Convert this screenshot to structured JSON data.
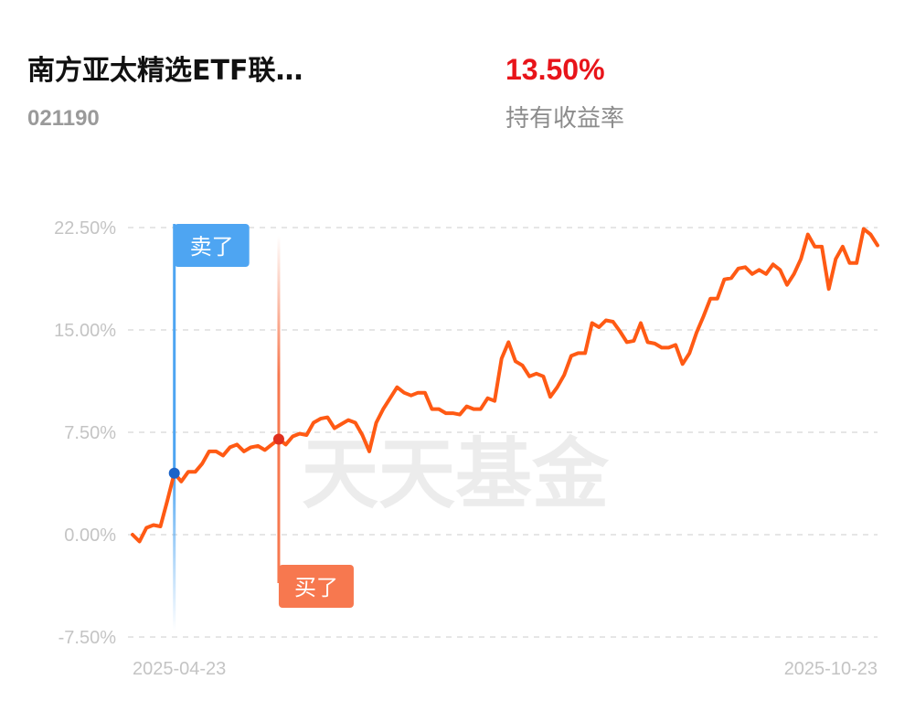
{
  "header": {
    "title": "南方亚太精选ETF联…",
    "code": "021190",
    "return": "13.50%",
    "return_label": "持有收益率"
  },
  "chart_data": {
    "type": "line",
    "watermark": "天天基金",
    "categories": [
      "2025-04-23",
      null,
      null,
      null,
      null,
      null,
      null,
      null,
      null,
      null,
      null,
      null,
      null,
      null,
      null,
      null,
      null,
      null,
      null,
      null,
      null,
      null,
      null,
      null,
      null,
      null,
      null,
      null,
      null,
      null,
      null,
      null,
      null,
      null,
      null,
      null,
      null,
      null,
      null,
      null,
      null,
      null,
      null,
      null,
      null,
      null,
      null,
      null,
      null,
      null,
      null,
      null,
      null,
      null,
      null,
      null,
      null,
      null,
      null,
      null,
      null,
      null,
      null,
      null,
      null,
      null,
      null,
      null,
      null,
      null,
      null,
      null,
      null,
      null,
      null,
      null,
      null,
      null,
      null,
      null,
      null,
      null,
      null,
      null,
      null,
      null,
      null,
      null,
      null,
      null,
      null,
      null,
      null,
      null,
      null,
      null,
      null,
      null,
      null,
      null,
      null,
      null,
      null,
      null,
      null,
      null,
      null,
      "2025-10-23"
    ],
    "series": [
      {
        "color": "#ff5a14",
        "values": [
          0,
          -0.5,
          0.5,
          0.7,
          0.6,
          2.5,
          4.5,
          3.9,
          4.6,
          4.6,
          5.2,
          6.1,
          6.1,
          5.8,
          6.4,
          6.6,
          6.1,
          6.4,
          6.5,
          6.2,
          6.6,
          7.0,
          6.6,
          7.2,
          7.4,
          7.3,
          8.2,
          8.5,
          8.6,
          7.8,
          8.1,
          8.4,
          8.2,
          7.3,
          6.1,
          8.2,
          9.2,
          10.0,
          10.8,
          10.4,
          10.2,
          10.4,
          10.4,
          9.2,
          9.2,
          8.9,
          8.9,
          8.8,
          9.4,
          9.2,
          9.2,
          10.0,
          9.8,
          12.9,
          14.1,
          12.7,
          12.4,
          11.6,
          11.8,
          11.6,
          10.1,
          10.8,
          11.7,
          13.1,
          13.3,
          13.3,
          15.5,
          15.2,
          15.7,
          15.6,
          14.9,
          14.1,
          14.2,
          15.5,
          14.1,
          14.0,
          13.7,
          13.7,
          13.9,
          12.5,
          13.3,
          14.8,
          16.0,
          17.3,
          17.3,
          18.7,
          18.8,
          19.5,
          19.6,
          19.1,
          19.4,
          19.1,
          19.8,
          19.4,
          18.3,
          19.1,
          20.2,
          22.0,
          21.1,
          21.1,
          18.0,
          20.2,
          21.1,
          19.9,
          19.9,
          22.4,
          22.0,
          21.2
        ]
      }
    ],
    "annotations": [
      {
        "text": "卖了",
        "value": 4.5,
        "color": "#4ea5f2",
        "dot_color": "#1a63c8"
      },
      {
        "text": "买了",
        "value": 7.0,
        "color": "#f7784f",
        "dot_color": "#e0301e"
      }
    ],
    "ylim": [
      -7.5,
      22.5
    ],
    "yticks": [
      {
        "value": -7.5,
        "label": "-7.50%"
      },
      {
        "value": 0,
        "label": "0.00%"
      },
      {
        "value": 7.5,
        "label": "7.50%"
      },
      {
        "value": 15,
        "label": "15.00%"
      },
      {
        "value": 22.5,
        "label": "22.50%"
      }
    ],
    "grid": true
  }
}
